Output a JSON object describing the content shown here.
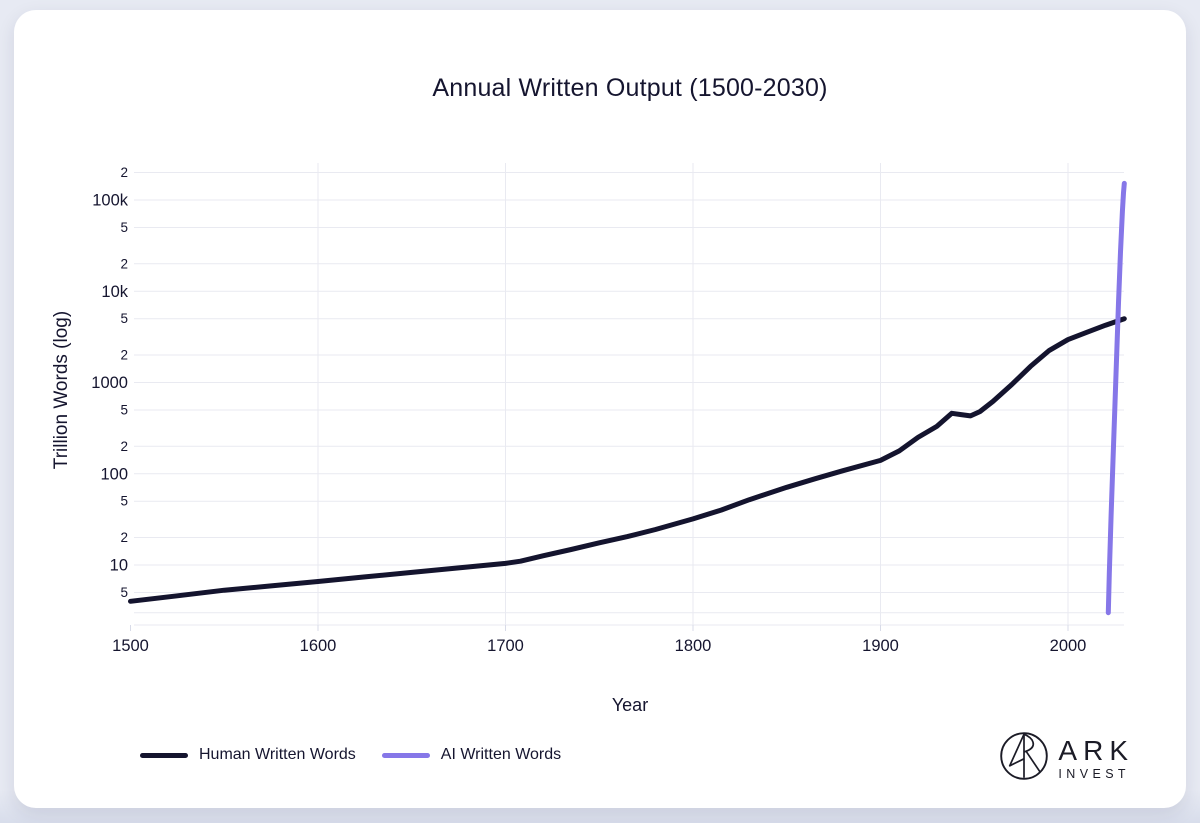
{
  "page": {
    "background_color": "#e7eaf3",
    "card_color": "#ffffff"
  },
  "title": "Annual Written Output (1500-2030)",
  "axes": {
    "x_label": "Year",
    "y_label": "Trillion Words (log)"
  },
  "legend": {
    "items": [
      {
        "label": "Human Written Words",
        "color": "#14142e"
      },
      {
        "label": "AI Written Words",
        "color": "#8677e8"
      }
    ]
  },
  "logo": {
    "brand": "ARK",
    "sub": "INVEST"
  },
  "chart_data": {
    "type": "line",
    "title": "Annual Written Output (1500-2030)",
    "xlabel": "Year",
    "ylabel": "Trillion Words (log)",
    "x_range": [
      1500,
      2030
    ],
    "x_ticks": [
      1500,
      1600,
      1700,
      1800,
      1900,
      2000
    ],
    "y_scale": "log",
    "y_range_trillion_words": [
      2.2,
      275000
    ],
    "grid": true,
    "gridline_color": "#e9eaf1",
    "legend_position": "bottom-left",
    "y_ticks": [
      {
        "value": 200000,
        "label": "2",
        "minor": true
      },
      {
        "value": 100000,
        "label": "100k",
        "minor": false
      },
      {
        "value": 50000,
        "label": "5",
        "minor": true
      },
      {
        "value": 20000,
        "label": "2",
        "minor": true
      },
      {
        "value": 10000,
        "label": "10k",
        "minor": false
      },
      {
        "value": 5000,
        "label": "5",
        "minor": true
      },
      {
        "value": 2000,
        "label": "2",
        "minor": true
      },
      {
        "value": 1000,
        "label": "1000",
        "minor": false
      },
      {
        "value": 500,
        "label": "5",
        "minor": true
      },
      {
        "value": 200,
        "label": "2",
        "minor": true
      },
      {
        "value": 100,
        "label": "100",
        "minor": false
      },
      {
        "value": 50,
        "label": "5",
        "minor": true
      },
      {
        "value": 20,
        "label": "2",
        "minor": true
      },
      {
        "value": 10,
        "label": "10",
        "minor": false
      },
      {
        "value": 5,
        "label": "5",
        "minor": true
      },
      {
        "value": 3,
        "label": "",
        "minor": true
      }
    ],
    "series": [
      {
        "name": "Human Written Words",
        "color": "#14142e",
        "points": [
          [
            1500,
            4
          ],
          [
            1525,
            4.6
          ],
          [
            1550,
            5.3
          ],
          [
            1575,
            5.9
          ],
          [
            1600,
            6.6
          ],
          [
            1625,
            7.4
          ],
          [
            1650,
            8.3
          ],
          [
            1675,
            9.3
          ],
          [
            1700,
            10.4
          ],
          [
            1708,
            11
          ],
          [
            1720,
            12.6
          ],
          [
            1735,
            14.8
          ],
          [
            1750,
            17.5
          ],
          [
            1765,
            20.5
          ],
          [
            1780,
            24.5
          ],
          [
            1800,
            32
          ],
          [
            1815,
            40
          ],
          [
            1830,
            52
          ],
          [
            1850,
            71
          ],
          [
            1865,
            88
          ],
          [
            1880,
            108
          ],
          [
            1900,
            140
          ],
          [
            1910,
            178
          ],
          [
            1920,
            250
          ],
          [
            1930,
            330
          ],
          [
            1938,
            460
          ],
          [
            1943,
            445
          ],
          [
            1948,
            430
          ],
          [
            1953,
            480
          ],
          [
            1960,
            620
          ],
          [
            1970,
            950
          ],
          [
            1980,
            1500
          ],
          [
            1990,
            2250
          ],
          [
            2000,
            2950
          ],
          [
            2010,
            3550
          ],
          [
            2020,
            4250
          ],
          [
            2030,
            5000
          ]
        ]
      },
      {
        "name": "AI Written Words",
        "color": "#8677e8",
        "points": [
          [
            2021.5,
            3
          ],
          [
            2022,
            8
          ],
          [
            2023,
            35
          ],
          [
            2024,
            140
          ],
          [
            2025,
            550
          ],
          [
            2026,
            2200
          ],
          [
            2027,
            8000
          ],
          [
            2028,
            27000
          ],
          [
            2029,
            75000
          ],
          [
            2029.6,
            120000
          ],
          [
            2030,
            152000
          ]
        ]
      }
    ]
  }
}
